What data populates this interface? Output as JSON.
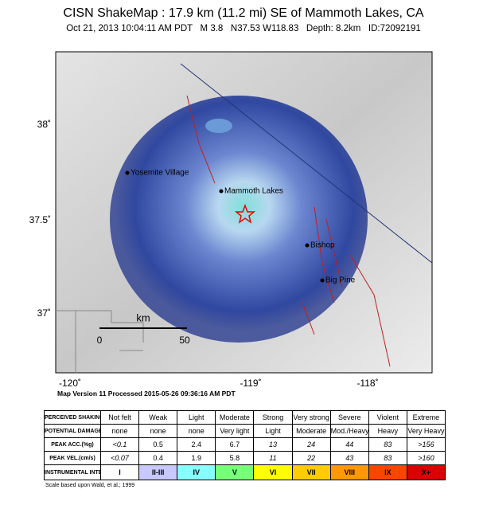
{
  "header": {
    "title": "CISN ShakeMap : 17.9 km (11.2 mi) SE of Mammoth Lakes, CA",
    "subtitle": "Oct 21, 2013 10:04:11 AM PDT   M 3.8   N37.53 W118.83   Depth: 8.2km   ID:72092191"
  },
  "map": {
    "lat_labels": [
      "38˚",
      "37.5˚",
      "37˚"
    ],
    "lon_labels": [
      "-120˚",
      "-119˚",
      "-118˚"
    ],
    "places": [
      "Yosemite Village",
      "Mammoth Lakes",
      "Bishop",
      "Big Pine"
    ],
    "scale": {
      "unit": "km",
      "ticks": [
        "0",
        "50"
      ]
    }
  },
  "version": "Map Version 11 Processed 2015-05-26 09:36:16 AM PDT",
  "table": {
    "rows": [
      [
        "PERCEIVED SHAKING",
        "Not felt",
        "Weak",
        "Light",
        "Moderate",
        "Strong",
        "Very strong",
        "Severe",
        "Violent",
        "Extreme"
      ],
      [
        "POTENTIAL DAMAGE",
        "none",
        "none",
        "none",
        "Very light",
        "Light",
        "Moderate",
        "Mod./Heavy",
        "Heavy",
        "Very Heavy"
      ],
      [
        "PEAK ACC.(%g)",
        "<0.1",
        "0.5",
        "2.4",
        "6.7",
        "13",
        "24",
        "44",
        "83",
        ">156"
      ],
      [
        "PEAK VEL.(cm/s)",
        "<0.07",
        "0.4",
        "1.9",
        "5.8",
        "11",
        "22",
        "43",
        "83",
        ">160"
      ],
      [
        "INSTRUMENTAL INTENSITY",
        "I",
        "II-III",
        "IV",
        "V",
        "VI",
        "VII",
        "VIII",
        "IX",
        "X+"
      ]
    ]
  },
  "footnote": "Scale based upon Wald, et al.; 1999"
}
